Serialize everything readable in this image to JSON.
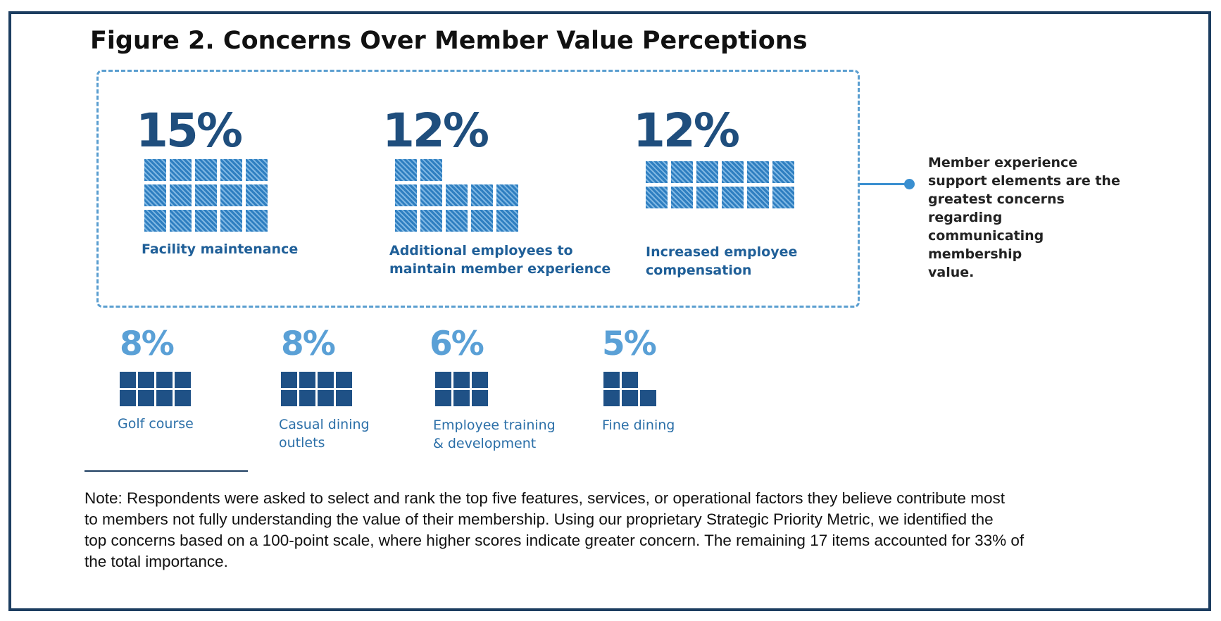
{
  "title": "Figure 2. Concerns Over Member Value Perceptions",
  "chart_data": {
    "type": "waffle",
    "unit": "1 square = 1%",
    "items": [
      {
        "label": "Facility maintenance",
        "value": 15,
        "value_label": "15%",
        "group": "highlighted"
      },
      {
        "label": "Additional employees to maintain member experience",
        "value": 12,
        "value_label": "12%",
        "group": "highlighted"
      },
      {
        "label": "Increased employee compensation",
        "value": 12,
        "value_label": "12%",
        "group": "highlighted"
      },
      {
        "label": "Golf course",
        "value": 8,
        "value_label": "8%",
        "group": "other"
      },
      {
        "label": "Casual dining outlets",
        "value": 8,
        "value_label": "8%",
        "group": "other"
      },
      {
        "label": "Employee training & development",
        "value": 6,
        "value_label": "6%",
        "group": "other"
      },
      {
        "label": "Fine dining",
        "value": 5,
        "value_label": "5%",
        "group": "other"
      }
    ],
    "colors": {
      "highlighted": "#2f7fc1",
      "other": "#1f5186",
      "top_pct_text": "#1f4e7d",
      "bottom_pct_text": "#5aa0d6"
    }
  },
  "labels": {
    "facility": [
      "Facility maintenance"
    ],
    "additional": [
      "Additional employees to",
      "maintain member experience"
    ],
    "compensation": [
      "Increased employee",
      "compensation"
    ],
    "golf": [
      "Golf course"
    ],
    "casual": [
      "Casual dining",
      "outlets"
    ],
    "training": [
      "Employee training",
      "& development"
    ],
    "fine": [
      "Fine dining"
    ]
  },
  "callout": {
    "lines": [
      "Member experience",
      "support elements are the",
      "greatest concerns regarding",
      "communicating membership",
      "value."
    ]
  },
  "note": {
    "lines": [
      "Note: Respondents were asked to select and rank the top five features, services, or operational factors they believe contribute most",
      "to members not fully understanding the value of their membership. Using our proprietary Strategic Priority Metric, we identified the",
      "top concerns based on a 100-point scale, where higher scores indicate greater concern. The remaining 17 items accounted for 33% of",
      "the total importance."
    ]
  }
}
